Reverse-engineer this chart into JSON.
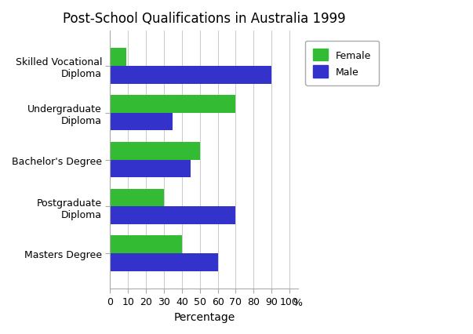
{
  "title": "Post-School Qualifications in Australia 1999",
  "categories": [
    "Skilled Vocational\nDiploma",
    "Undergraduate\nDiploma",
    "Bachelor's Degree",
    "Postgraduate\nDiploma",
    "Masters Degree"
  ],
  "female_values": [
    9,
    70,
    50,
    30,
    40
  ],
  "male_values": [
    90,
    35,
    45,
    70,
    60
  ],
  "female_color": "#33bb33",
  "male_color": "#3333cc",
  "xlabel": "Percentage",
  "xlim_max": 105,
  "xticks": [
    0,
    10,
    20,
    30,
    40,
    50,
    60,
    70,
    80,
    90,
    100
  ],
  "xtick_labels": [
    "0",
    "10",
    "20",
    "30",
    "40",
    "50",
    "60",
    "70",
    "80",
    "90",
    "100"
  ],
  "background_color": "#ffffff",
  "plot_bg_color": "#ffffff",
  "title_fontsize": 12,
  "legend_labels": [
    "Female",
    "Male"
  ],
  "bar_height": 0.38,
  "category_fontsize": 9,
  "axis_fontsize": 9,
  "xlabel_fontsize": 10
}
